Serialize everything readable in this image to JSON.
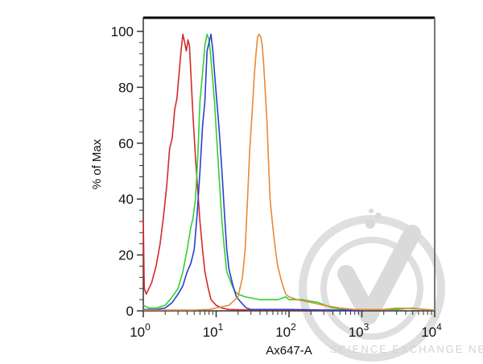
{
  "chart_data": {
    "type": "line",
    "title": "",
    "xlabel": "Ax647-A",
    "ylabel": "% of Max",
    "xscale": "log",
    "xlim": [
      1,
      10000
    ],
    "ylim": [
      0,
      100
    ],
    "x_ticks": [
      {
        "base": "10",
        "exp": "0"
      },
      {
        "base": "10",
        "exp": "1"
      },
      {
        "base": "10",
        "exp": "2"
      },
      {
        "base": "10",
        "exp": "3"
      },
      {
        "base": "10",
        "exp": "4"
      }
    ],
    "y_ticks": [
      "0",
      "20",
      "40",
      "60",
      "80",
      "100"
    ],
    "grid": false,
    "legend": null,
    "series": [
      {
        "name": "red",
        "color": "#d42a2a",
        "points": [
          [
            1.0,
            33
          ],
          [
            1.03,
            8
          ],
          [
            1.1,
            6
          ],
          [
            1.3,
            10
          ],
          [
            1.5,
            16
          ],
          [
            1.7,
            24
          ],
          [
            1.9,
            34
          ],
          [
            2.1,
            45
          ],
          [
            2.3,
            58
          ],
          [
            2.5,
            62
          ],
          [
            2.7,
            72
          ],
          [
            2.9,
            76
          ],
          [
            3.1,
            85
          ],
          [
            3.3,
            93
          ],
          [
            3.5,
            99
          ],
          [
            3.7,
            96
          ],
          [
            3.9,
            93
          ],
          [
            4.1,
            97
          ],
          [
            4.3,
            95
          ],
          [
            4.5,
            85
          ],
          [
            4.8,
            70
          ],
          [
            5.2,
            55
          ],
          [
            5.6,
            43
          ],
          [
            6.0,
            32
          ],
          [
            6.5,
            22
          ],
          [
            7.0,
            14
          ],
          [
            7.8,
            8
          ],
          [
            8.5,
            4
          ],
          [
            10,
            2
          ],
          [
            12,
            1
          ],
          [
            15,
            0.5
          ],
          [
            30,
            0.3
          ],
          [
            100,
            0.3
          ],
          [
            1000,
            0.2
          ]
        ]
      },
      {
        "name": "green",
        "color": "#2ed22e",
        "points": [
          [
            1.0,
            2
          ],
          [
            1.2,
            1
          ],
          [
            1.5,
            1
          ],
          [
            2.0,
            2
          ],
          [
            2.5,
            5
          ],
          [
            3.0,
            8
          ],
          [
            3.5,
            14
          ],
          [
            4.0,
            22
          ],
          [
            4.5,
            30
          ],
          [
            4.8,
            33
          ],
          [
            5.2,
            40
          ],
          [
            5.6,
            55
          ],
          [
            6.0,
            75
          ],
          [
            6.5,
            85
          ],
          [
            7.0,
            95
          ],
          [
            7.5,
            99
          ],
          [
            8.0,
            97
          ],
          [
            8.5,
            90
          ],
          [
            9.0,
            82
          ],
          [
            9.5,
            75
          ],
          [
            10,
            65
          ],
          [
            11,
            48
          ],
          [
            12,
            32
          ],
          [
            13,
            22
          ],
          [
            14,
            14
          ],
          [
            16,
            10
          ],
          [
            18,
            7
          ],
          [
            20,
            6
          ],
          [
            25,
            5
          ],
          [
            40,
            4
          ],
          [
            70,
            4
          ],
          [
            90,
            5
          ],
          [
            100,
            4
          ],
          [
            150,
            4
          ],
          [
            250,
            3
          ],
          [
            400,
            1
          ],
          [
            600,
            0.5
          ],
          [
            2000,
            0.5
          ],
          [
            3000,
            0.5
          ],
          [
            5000,
            1
          ],
          [
            7000,
            0.5
          ],
          [
            10000,
            0.3
          ]
        ]
      },
      {
        "name": "blue",
        "color": "#2a3ed0",
        "points": [
          [
            1.0,
            0.5
          ],
          [
            1.5,
            0.5
          ],
          [
            2.0,
            1
          ],
          [
            2.5,
            3
          ],
          [
            3.0,
            6
          ],
          [
            3.5,
            9
          ],
          [
            4.0,
            14
          ],
          [
            4.5,
            17
          ],
          [
            5.0,
            22
          ],
          [
            5.5,
            35
          ],
          [
            6.0,
            50
          ],
          [
            6.5,
            66
          ],
          [
            7.0,
            75
          ],
          [
            7.5,
            93
          ],
          [
            8.0,
            96
          ],
          [
            8.5,
            99
          ],
          [
            9.0,
            93
          ],
          [
            9.5,
            85
          ],
          [
            10,
            78
          ],
          [
            11,
            65
          ],
          [
            12,
            50
          ],
          [
            13,
            35
          ],
          [
            14,
            22
          ],
          [
            15,
            15
          ],
          [
            17,
            9
          ],
          [
            19,
            5
          ],
          [
            22,
            3
          ],
          [
            26,
            1
          ],
          [
            30,
            0.5
          ],
          [
            100,
            0.5
          ],
          [
            300,
            0.3
          ],
          [
            1000,
            0.2
          ]
        ]
      },
      {
        "name": "orange",
        "color": "#e8893a",
        "points": [
          [
            1.0,
            0.3
          ],
          [
            5,
            0.3
          ],
          [
            8,
            0.5
          ],
          [
            10,
            1
          ],
          [
            15,
            2
          ],
          [
            20,
            5
          ],
          [
            23,
            12
          ],
          [
            25,
            22
          ],
          [
            27,
            40
          ],
          [
            29,
            58
          ],
          [
            31,
            70
          ],
          [
            33,
            82
          ],
          [
            35,
            91
          ],
          [
            37,
            98
          ],
          [
            39,
            99
          ],
          [
            41,
            98
          ],
          [
            43,
            95
          ],
          [
            45,
            88
          ],
          [
            48,
            75
          ],
          [
            50,
            67
          ],
          [
            52,
            55
          ],
          [
            55,
            40
          ],
          [
            60,
            30
          ],
          [
            65,
            22
          ],
          [
            70,
            16
          ],
          [
            80,
            10
          ],
          [
            90,
            6
          ],
          [
            100,
            5
          ],
          [
            130,
            4
          ],
          [
            200,
            3
          ],
          [
            300,
            2
          ],
          [
            500,
            1
          ],
          [
            800,
            0.5
          ],
          [
            2000,
            0.5
          ],
          [
            3000,
            1
          ],
          [
            5000,
            0.8
          ],
          [
            10000,
            0.3
          ]
        ]
      }
    ],
    "watermark": "SCIENCE EXCHANGE NETWORK"
  }
}
